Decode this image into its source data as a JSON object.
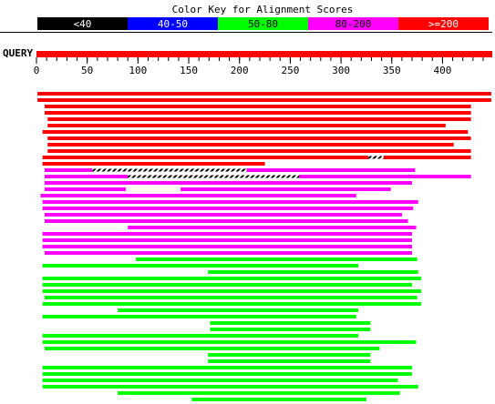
{
  "chart_data": {
    "type": "alignment",
    "title": "Color Key for Alignment Scores",
    "key": [
      {
        "label": "<40",
        "color": "#000000"
      },
      {
        "label": "40-50",
        "color": "#0000ff"
      },
      {
        "label": "50-80",
        "color": "#00ff00"
      },
      {
        "label": "80-200",
        "color": "#ff00ff"
      },
      {
        "label": ">=200",
        "color": "#ff0000"
      }
    ],
    "query_label": "QUERY",
    "query_color": "#ff0000",
    "xlim": [
      0,
      449
    ],
    "xticks": [
      0,
      50,
      100,
      150,
      200,
      250,
      300,
      350,
      400
    ],
    "xminor_step": 10,
    "hits": [
      {
        "color": "#ff0000",
        "segments": [
          [
            1,
            448
          ]
        ]
      },
      {
        "color": "#ff0000",
        "segments": [
          [
            1,
            448
          ]
        ]
      },
      {
        "color": "#ff0000",
        "segments": [
          [
            8,
            428
          ]
        ]
      },
      {
        "color": "#ff0000",
        "segments": [
          [
            8,
            428
          ]
        ]
      },
      {
        "color": "#ff0000",
        "segments": [
          [
            11,
            428
          ]
        ]
      },
      {
        "color": "#ff0000",
        "segments": [
          [
            11,
            403
          ]
        ]
      },
      {
        "color": "#ff0000",
        "segments": [
          [
            6,
            425
          ]
        ]
      },
      {
        "color": "#ff0000",
        "segments": [
          [
            11,
            428
          ]
        ]
      },
      {
        "color": "#ff0000",
        "segments": [
          [
            11,
            411
          ]
        ]
      },
      {
        "color": "#ff0000",
        "segments": [
          [
            11,
            428
          ]
        ]
      },
      {
        "color": "#ff0000",
        "segments": [
          [
            6,
            327
          ],
          [
            342,
            428
          ]
        ],
        "gaps": [
          [
            327,
            342
          ]
        ]
      },
      {
        "color": "#ff0000",
        "segments": [
          [
            6,
            225
          ]
        ]
      },
      {
        "color": "#ff00ff",
        "segments": [
          [
            8,
            55
          ],
          [
            207,
            373
          ]
        ],
        "gaps": [
          [
            55,
            207
          ]
        ]
      },
      {
        "color": "#ff00ff",
        "segments": [
          [
            8,
            90
          ],
          [
            259,
            428
          ]
        ],
        "gaps": [
          [
            90,
            259
          ]
        ]
      },
      {
        "color": "#ff00ff",
        "segments": [
          [
            8,
            370
          ]
        ]
      },
      {
        "color": "#ff00ff",
        "segments": [
          [
            8,
            88
          ],
          [
            142,
            349
          ]
        ]
      },
      {
        "color": "#ff00ff",
        "segments": [
          [
            4,
            315
          ]
        ]
      },
      {
        "color": "#ff00ff",
        "segments": [
          [
            6,
            376
          ]
        ]
      },
      {
        "color": "#ff00ff",
        "segments": [
          [
            6,
            371
          ]
        ]
      },
      {
        "color": "#ff00ff",
        "segments": [
          [
            8,
            360
          ]
        ]
      },
      {
        "color": "#ff00ff",
        "segments": [
          [
            8,
            366
          ]
        ]
      },
      {
        "color": "#ff00ff",
        "segments": [
          [
            90,
            374
          ]
        ]
      },
      {
        "color": "#ff00ff",
        "segments": [
          [
            6,
            370
          ]
        ]
      },
      {
        "color": "#ff00ff",
        "segments": [
          [
            6,
            370
          ]
        ]
      },
      {
        "color": "#ff00ff",
        "segments": [
          [
            6,
            370
          ]
        ]
      },
      {
        "color": "#ff00ff",
        "segments": [
          [
            8,
            370
          ]
        ]
      },
      {
        "color": "#00ff00",
        "segments": [
          [
            98,
            375
          ]
        ]
      },
      {
        "color": "#00ff00",
        "segments": [
          [
            6,
            317
          ]
        ]
      },
      {
        "color": "#00ff00",
        "segments": [
          [
            169,
            376
          ]
        ]
      },
      {
        "color": "#00ff00",
        "segments": [
          [
            6,
            379
          ]
        ]
      },
      {
        "color": "#00ff00",
        "segments": [
          [
            6,
            370
          ]
        ]
      },
      {
        "color": "#00ff00",
        "segments": [
          [
            6,
            379
          ]
        ]
      },
      {
        "color": "#00ff00",
        "segments": [
          [
            8,
            375
          ]
        ]
      },
      {
        "color": "#00ff00",
        "segments": [
          [
            6,
            379
          ]
        ]
      },
      {
        "color": "#00ff00",
        "segments": [
          [
            80,
            317
          ]
        ]
      },
      {
        "color": "#00ff00",
        "segments": [
          [
            6,
            315
          ]
        ]
      },
      {
        "color": "#00ff00",
        "segments": [
          [
            171,
            329
          ]
        ]
      },
      {
        "color": "#00ff00",
        "segments": [
          [
            171,
            329
          ]
        ]
      },
      {
        "color": "#00ff00",
        "segments": [
          [
            6,
            317
          ]
        ]
      },
      {
        "color": "#00ff00",
        "segments": [
          [
            6,
            374
          ]
        ]
      },
      {
        "color": "#00ff00",
        "segments": [
          [
            8,
            338
          ]
        ]
      },
      {
        "color": "#00ff00",
        "segments": [
          [
            169,
            329
          ]
        ]
      },
      {
        "color": "#00ff00",
        "segments": [
          [
            169,
            329
          ]
        ]
      },
      {
        "color": "#00ff00",
        "segments": [
          [
            6,
            370
          ]
        ]
      },
      {
        "color": "#00ff00",
        "segments": [
          [
            6,
            370
          ]
        ]
      },
      {
        "color": "#00ff00",
        "segments": [
          [
            6,
            356
          ]
        ]
      },
      {
        "color": "#00ff00",
        "segments": [
          [
            6,
            376
          ]
        ]
      },
      {
        "color": "#00ff00",
        "segments": [
          [
            80,
            358
          ]
        ]
      },
      {
        "color": "#00ff00",
        "segments": [
          [
            153,
            325
          ]
        ]
      }
    ]
  }
}
